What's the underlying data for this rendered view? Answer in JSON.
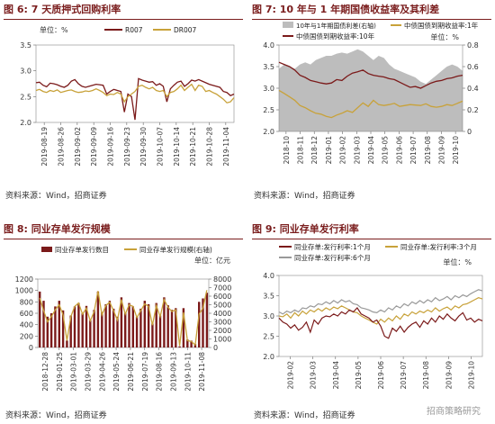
{
  "colors": {
    "maroon": "#7b1a1a",
    "gold": "#c8a23a",
    "gray": "#999999",
    "area": "#bdbdbd"
  },
  "watermark": "招商策略研究",
  "panels": [
    {
      "title": "图 6: 7 天质押式回购利率",
      "source": "资料来源：Wind，招商证券",
      "unit": "单位：%",
      "chart_data": {
        "type": "line",
        "ylim": [
          2.0,
          3.5
        ],
        "yticks": [
          "2.0",
          "2.5",
          "3.0",
          "3.5"
        ],
        "xticks": [
          "2019-08-19",
          "2019-08-26",
          "2019-09-02",
          "2019-09-09",
          "2019-09-16",
          "2019-09-23",
          "2019-09-30",
          "2019-10-07",
          "2019-10-14",
          "2019-10-21",
          "2019-10-28",
          "2019-11-04"
        ],
        "series": [
          {
            "name": "R007",
            "color": "maroon",
            "values": [
              2.77,
              2.78,
              2.72,
              2.69,
              2.76,
              2.75,
              2.73,
              2.7,
              2.68,
              2.72,
              2.8,
              2.83,
              2.75,
              2.7,
              2.68,
              2.7,
              2.72,
              2.74,
              2.73,
              2.72,
              2.55,
              2.6,
              2.64,
              2.62,
              2.6,
              2.2,
              2.55,
              2.5,
              2.05,
              2.85,
              2.82,
              2.8,
              2.78,
              2.79,
              2.72,
              2.75,
              2.7,
              2.4,
              2.65,
              2.72,
              2.78,
              2.8,
              2.7,
              2.75,
              2.82,
              2.8,
              2.83,
              2.8,
              2.77,
              2.74,
              2.72,
              2.7,
              2.68,
              2.6,
              2.58,
              2.52,
              2.55
            ]
          },
          {
            "name": "DR007",
            "color": "gold",
            "values": [
              2.62,
              2.64,
              2.6,
              2.58,
              2.62,
              2.6,
              2.63,
              2.58,
              2.6,
              2.62,
              2.63,
              2.6,
              2.58,
              2.59,
              2.61,
              2.6,
              2.62,
              2.65,
              2.62,
              2.58,
              2.52,
              2.55,
              2.54,
              2.58,
              2.55,
              2.4,
              2.5,
              2.55,
              2.6,
              2.7,
              2.72,
              2.68,
              2.65,
              2.68,
              2.62,
              2.6,
              2.62,
              2.5,
              2.58,
              2.6,
              2.65,
              2.72,
              2.62,
              2.68,
              2.74,
              2.62,
              2.72,
              2.7,
              2.6,
              2.62,
              2.58,
              2.55,
              2.5,
              2.45,
              2.38,
              2.4,
              2.48
            ]
          }
        ]
      }
    },
    {
      "title": "图 7: 10 年与 1 年期国债收益率及其利差",
      "source": "资料来源：Wind，招商证券",
      "unit": "单位：%",
      "chart_data": {
        "type": "area",
        "ylim_left": [
          2.0,
          4.0
        ],
        "yticks_left": [
          "2.0",
          "2.5",
          "3.0",
          "3.5",
          "4.0"
        ],
        "ylim_right": [
          0,
          0.8
        ],
        "yticks_right": [
          "0",
          "0.2",
          "0.4",
          "0.6",
          "0.8"
        ],
        "xticks": [
          "2018-10",
          "2018-11",
          "2018-12",
          "2019-01",
          "2019-02",
          "2019-03",
          "2019-04",
          "2019-05",
          "2019-06",
          "2019-07",
          "2019-08",
          "2019-09",
          "2019-10"
        ],
        "series": [
          {
            "name": "10年与1年期国债利差(右轴)",
            "axis": "right",
            "color": "area",
            "values": [
              0.58,
              0.62,
              0.6,
              0.58,
              0.62,
              0.64,
              0.62,
              0.66,
              0.68,
              0.7,
              0.7,
              0.72,
              0.73,
              0.72,
              0.74,
              0.76,
              0.74,
              0.7,
              0.66,
              0.7,
              0.68,
              0.62,
              0.58,
              0.56,
              0.54,
              0.52,
              0.5,
              0.46,
              0.44,
              0.48,
              0.52,
              0.56,
              0.6,
              0.62,
              0.6,
              0.56
            ]
          },
          {
            "name": "中债国债到期收益率:1年",
            "axis": "left",
            "color": "gold",
            "values": [
              2.95,
              2.88,
              2.8,
              2.72,
              2.6,
              2.55,
              2.48,
              2.42,
              2.4,
              2.35,
              2.32,
              2.38,
              2.42,
              2.48,
              2.44,
              2.55,
              2.66,
              2.58,
              2.72,
              2.62,
              2.6,
              2.62,
              2.65,
              2.58,
              2.6,
              2.62,
              2.61,
              2.6,
              2.64,
              2.58,
              2.56,
              2.58,
              2.62,
              2.6,
              2.65,
              2.7
            ]
          },
          {
            "name": "中债国债到期收益率:10年",
            "axis": "left",
            "color": "maroon",
            "values": [
              3.6,
              3.55,
              3.5,
              3.42,
              3.3,
              3.25,
              3.18,
              3.15,
              3.12,
              3.1,
              3.12,
              3.2,
              3.18,
              3.28,
              3.35,
              3.38,
              3.42,
              3.34,
              3.3,
              3.28,
              3.26,
              3.22,
              3.2,
              3.14,
              3.08,
              3.02,
              3.04,
              3.0,
              3.06,
              3.12,
              3.16,
              3.18,
              3.22,
              3.24,
              3.28,
              3.3
            ]
          }
        ]
      }
    },
    {
      "title": "图 8: 同业存单发行规模",
      "source": "资料来源：Wind，招商证券",
      "unit": "单位：亿元",
      "chart_data": {
        "type": "bar",
        "ylim_left": [
          0,
          1200
        ],
        "yticks_left": [
          "0",
          "200",
          "400",
          "600",
          "800",
          "1000",
          "1200"
        ],
        "ylim_right": [
          0,
          8000
        ],
        "yticks_right": [
          "0",
          "1000",
          "2000",
          "3000",
          "4000",
          "5000",
          "6000",
          "7000",
          "8000"
        ],
        "xticks": [
          "2018-12-28",
          "2019-01-25",
          "2019-03-01",
          "2019-03-29",
          "2019-04-26",
          "2019-05-24",
          "2019-06-21",
          "2019-07-19",
          "2019-08-16",
          "2019-09-13",
          "2019-10-11",
          "2019-11-08"
        ],
        "series": [
          {
            "name": "同业存单发行数目",
            "axis": "left",
            "color": "maroon",
            "values": [
              980,
              820,
              540,
              600,
              720,
              820,
              650,
              120,
              560,
              720,
              780,
              600,
              730,
              480,
              660,
              980,
              620,
              760,
              820,
              680,
              540,
              880,
              610,
              780,
              720,
              540,
              680,
              820,
              760,
              420,
              780,
              560,
              880,
              740,
              660,
              690,
              20,
              690,
              140,
              120,
              60,
              800,
              860,
              960
            ]
          },
          {
            "name": "同业存单发行规模(右轴)",
            "axis": "right",
            "color": "gold",
            "values": [
              5800,
              4300,
              3000,
              3600,
              4400,
              5000,
              3800,
              800,
              3600,
              4800,
              5200,
              3900,
              4600,
              3100,
              4200,
              6600,
              3800,
              4900,
              5300,
              4300,
              3200,
              5600,
              3900,
              5000,
              4800,
              3500,
              4300,
              5100,
              4800,
              2600,
              4900,
              3600,
              5600,
              4700,
              4200,
              4400,
              200,
              4100,
              800,
              700,
              300,
              3900,
              4600,
              6700
            ]
          }
        ]
      }
    },
    {
      "title": "图 9: 同业存单发行利率",
      "source": "资料来源：Wind，招商证券",
      "unit": "单位：%",
      "chart_data": {
        "type": "line",
        "ylim": [
          2.0,
          4.0
        ],
        "yticks": [
          "2.0",
          "2.5",
          "3.0",
          "3.5",
          "4.0"
        ],
        "xticks": [
          "2019-02",
          "2019-03",
          "2019-04",
          "2019-05",
          "2019-06",
          "2019-07",
          "2019-08",
          "2019-09",
          "2019-10"
        ],
        "series": [
          {
            "name": "同业存单:发行利率:1个月",
            "color": "maroon",
            "values": [
              2.95,
              2.85,
              2.8,
              2.7,
              2.78,
              2.65,
              2.72,
              2.85,
              2.6,
              2.9,
              2.8,
              2.95,
              3.0,
              2.98,
              3.05,
              3.0,
              3.1,
              3.05,
              3.15,
              3.1,
              3.2,
              3.05,
              3.0,
              2.95,
              2.85,
              2.9,
              2.75,
              2.5,
              2.45,
              2.7,
              2.62,
              2.75,
              2.6,
              2.72,
              2.8,
              2.85,
              2.72,
              2.88,
              2.8,
              2.95,
              2.85,
              3.0,
              2.92,
              3.05,
              2.95,
              2.88,
              3.0,
              3.08,
              2.9,
              2.95,
              2.85,
              2.92,
              2.88
            ]
          },
          {
            "name": "同业存单:发行利率:3个月",
            "color": "gold",
            "values": [
              3.0,
              2.98,
              3.05,
              2.95,
              3.08,
              3.0,
              3.12,
              3.05,
              3.15,
              3.1,
              3.18,
              3.12,
              3.2,
              3.15,
              3.22,
              3.18,
              3.25,
              3.2,
              3.15,
              3.1,
              3.08,
              3.0,
              2.95,
              2.9,
              2.85,
              2.8,
              2.92,
              2.85,
              2.95,
              2.88,
              3.0,
              2.92,
              3.05,
              3.0,
              3.1,
              3.05,
              3.12,
              3.08,
              3.15,
              3.1,
              3.2,
              3.12,
              3.18,
              3.22,
              3.15,
              3.25,
              3.2,
              3.28,
              3.3,
              3.35,
              3.4,
              3.45,
              3.42
            ]
          },
          {
            "name": "同业存单:发行利率:6个月",
            "color": "gray",
            "values": [
              3.1,
              3.05,
              3.12,
              3.08,
              3.15,
              3.1,
              3.2,
              3.18,
              3.25,
              3.22,
              3.3,
              3.28,
              3.35,
              3.3,
              3.38,
              3.32,
              3.4,
              3.35,
              3.38,
              3.3,
              3.28,
              3.2,
              3.18,
              3.15,
              3.1,
              3.08,
              3.15,
              3.1,
              3.2,
              3.15,
              3.25,
              3.2,
              3.3,
              3.25,
              3.35,
              3.3,
              3.38,
              3.32,
              3.4,
              3.35,
              3.45,
              3.38,
              3.42,
              3.48,
              3.4,
              3.5,
              3.45,
              3.52,
              3.48,
              3.55,
              3.6,
              3.65,
              3.62
            ]
          }
        ]
      }
    }
  ]
}
